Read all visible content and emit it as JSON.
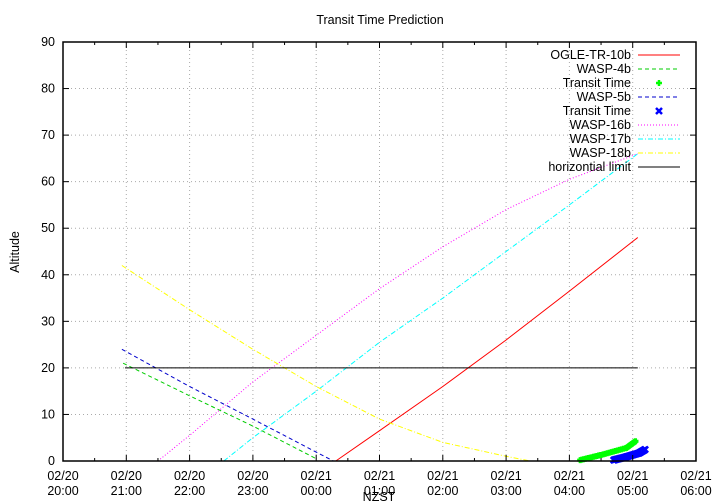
{
  "chart_data": {
    "type": "line",
    "title": "Transit Time Prediction",
    "xlabel": "NZST",
    "ylabel": "Altitude",
    "ylim": [
      0,
      90
    ],
    "yticks": [
      0,
      10,
      20,
      30,
      40,
      50,
      60,
      70,
      80,
      90
    ],
    "x_unit": "hours since 02/20 20:00",
    "xlim": [
      0,
      10
    ],
    "xticks": [
      {
        "h": 0,
        "date": "02/20",
        "time": "20:00"
      },
      {
        "h": 1,
        "date": "02/20",
        "time": "21:00"
      },
      {
        "h": 2,
        "date": "02/20",
        "time": "22:00"
      },
      {
        "h": 3,
        "date": "02/20",
        "time": "23:00"
      },
      {
        "h": 4,
        "date": "02/21",
        "time": "00:00"
      },
      {
        "h": 5,
        "date": "02/21",
        "time": "01:00"
      },
      {
        "h": 6,
        "date": "02/21",
        "time": "02:00"
      },
      {
        "h": 7,
        "date": "02/21",
        "time": "03:00"
      },
      {
        "h": 8,
        "date": "02/21",
        "time": "04:00"
      },
      {
        "h": 9,
        "date": "02/21",
        "time": "05:00"
      },
      {
        "h": 10,
        "date": "02/21",
        "time": "06:00"
      }
    ],
    "grid": true,
    "legend_position": "top-right inside",
    "series": [
      {
        "name": "OGLE-TR-10b",
        "color": "#ff0000",
        "style": "solid",
        "points": [
          [
            4.31,
            0
          ],
          [
            5.0,
            6.5
          ],
          [
            6.0,
            16
          ],
          [
            7.0,
            26
          ],
          [
            8.0,
            36.5
          ],
          [
            9.08,
            48
          ]
        ]
      },
      {
        "name": "WASP-4b",
        "color": "#00cc00",
        "style": "dashed",
        "points": [
          [
            0.95,
            21
          ],
          [
            2.0,
            14
          ],
          [
            3.0,
            7.5
          ],
          [
            4.0,
            0.5
          ]
        ]
      },
      {
        "name": "Transit Time",
        "color": "#00ff00",
        "style": "marker-plus",
        "points": [
          [
            8.17,
            0.2
          ],
          [
            8.5,
            1.3
          ],
          [
            8.9,
            2.8
          ],
          [
            9.05,
            4.3
          ]
        ]
      },
      {
        "name": "WASP-5b",
        "color": "#0000cc",
        "style": "dashed",
        "points": [
          [
            0.93,
            24
          ],
          [
            2.0,
            16
          ],
          [
            3.0,
            9
          ],
          [
            4.27,
            0
          ]
        ]
      },
      {
        "name": "Transit Time",
        "color": "#0000ff",
        "style": "marker-x",
        "points": [
          [
            8.7,
            0.2
          ],
          [
            8.9,
            0.9
          ],
          [
            9.1,
            1.7
          ],
          [
            9.2,
            2.5
          ]
        ]
      },
      {
        "name": "WASP-16b",
        "color": "#ff00ff",
        "style": "dotted",
        "points": [
          [
            1.5,
            0
          ],
          [
            2.0,
            5.5
          ],
          [
            3.0,
            17
          ],
          [
            4.0,
            27
          ],
          [
            5.0,
            37
          ],
          [
            6.0,
            46
          ],
          [
            7.0,
            54
          ],
          [
            8.0,
            60.5
          ],
          [
            9.08,
            66
          ]
        ]
      },
      {
        "name": "WASP-17b",
        "color": "#00ffff",
        "style": "dash-dot",
        "points": [
          [
            2.54,
            0
          ],
          [
            3.0,
            5
          ],
          [
            4.0,
            15
          ],
          [
            5.0,
            25.5
          ],
          [
            6.0,
            35
          ],
          [
            7.0,
            45
          ],
          [
            8.0,
            55
          ],
          [
            9.08,
            66
          ]
        ]
      },
      {
        "name": "WASP-18b",
        "color": "#ffff00",
        "style": "dash-dot",
        "points": [
          [
            0.93,
            42
          ],
          [
            2.0,
            32.5
          ],
          [
            3.0,
            24
          ],
          [
            4.0,
            16
          ],
          [
            5.0,
            9
          ],
          [
            6.0,
            4
          ],
          [
            7.0,
            1
          ],
          [
            7.38,
            0
          ]
        ]
      },
      {
        "name": "horizontial limit",
        "color": "#000000",
        "style": "solid",
        "points": [
          [
            0.98,
            20
          ],
          [
            9.08,
            20
          ]
        ]
      }
    ]
  }
}
